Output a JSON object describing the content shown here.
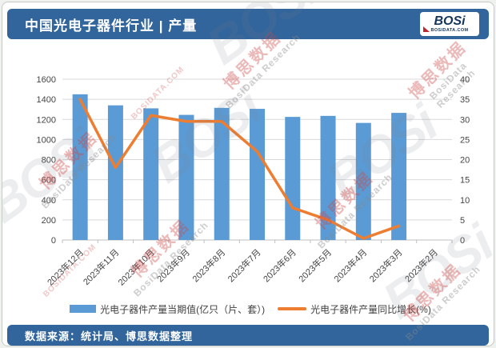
{
  "colors": {
    "header_bg": "#31659C",
    "footer_bg": "#31659C",
    "bar": "#5B9BD5",
    "line": "#ED7D31",
    "gridline": "#D9D9D9",
    "axis_line": "#BFBFBF"
  },
  "header": {
    "title": "中国光电子器件行业 | 产量",
    "logo": {
      "text": "BOSi",
      "site": "BOSIDATA.COM"
    }
  },
  "footer": {
    "text": "数据来源：统计局、博思数据整理"
  },
  "watermark": {
    "logo": "BOSi",
    "cn": "博思数据",
    "en": "BosiData Research",
    "site": "BOSIDATA.COM"
  },
  "chart_data": {
    "type": "bar",
    "title": "中国光电子器件行业 | 产量",
    "categories": [
      "2023年12月",
      "2023年11月",
      "2023年10月",
      "2023年9月",
      "2023年8月",
      "2023年7月",
      "2023年6月",
      "2023年5月",
      "2023年4月",
      "2023年3月",
      "2023年2月"
    ],
    "series": [
      {
        "name": "光电子器件产量当期值(亿只（片、套）)",
        "type": "bar",
        "axis": "left",
        "color": "#5B9BD5",
        "values": [
          1450,
          1340,
          1310,
          1245,
          1315,
          1305,
          1225,
          1235,
          1165,
          1265,
          null
        ]
      },
      {
        "name": "光电子器件产量同比增长(%)",
        "type": "line",
        "axis": "right",
        "color": "#ED7D31",
        "values": [
          35,
          18,
          31,
          29.5,
          29.5,
          22,
          8,
          5,
          0.4,
          3.5,
          null
        ]
      }
    ],
    "left_axis": {
      "min": 0,
      "max": 1600,
      "step": 200
    },
    "right_axis": {
      "min": 0,
      "max": 40,
      "step": 5
    },
    "grid": true,
    "legend_position": "bottom",
    "xlabel": "",
    "ylabel": ""
  }
}
